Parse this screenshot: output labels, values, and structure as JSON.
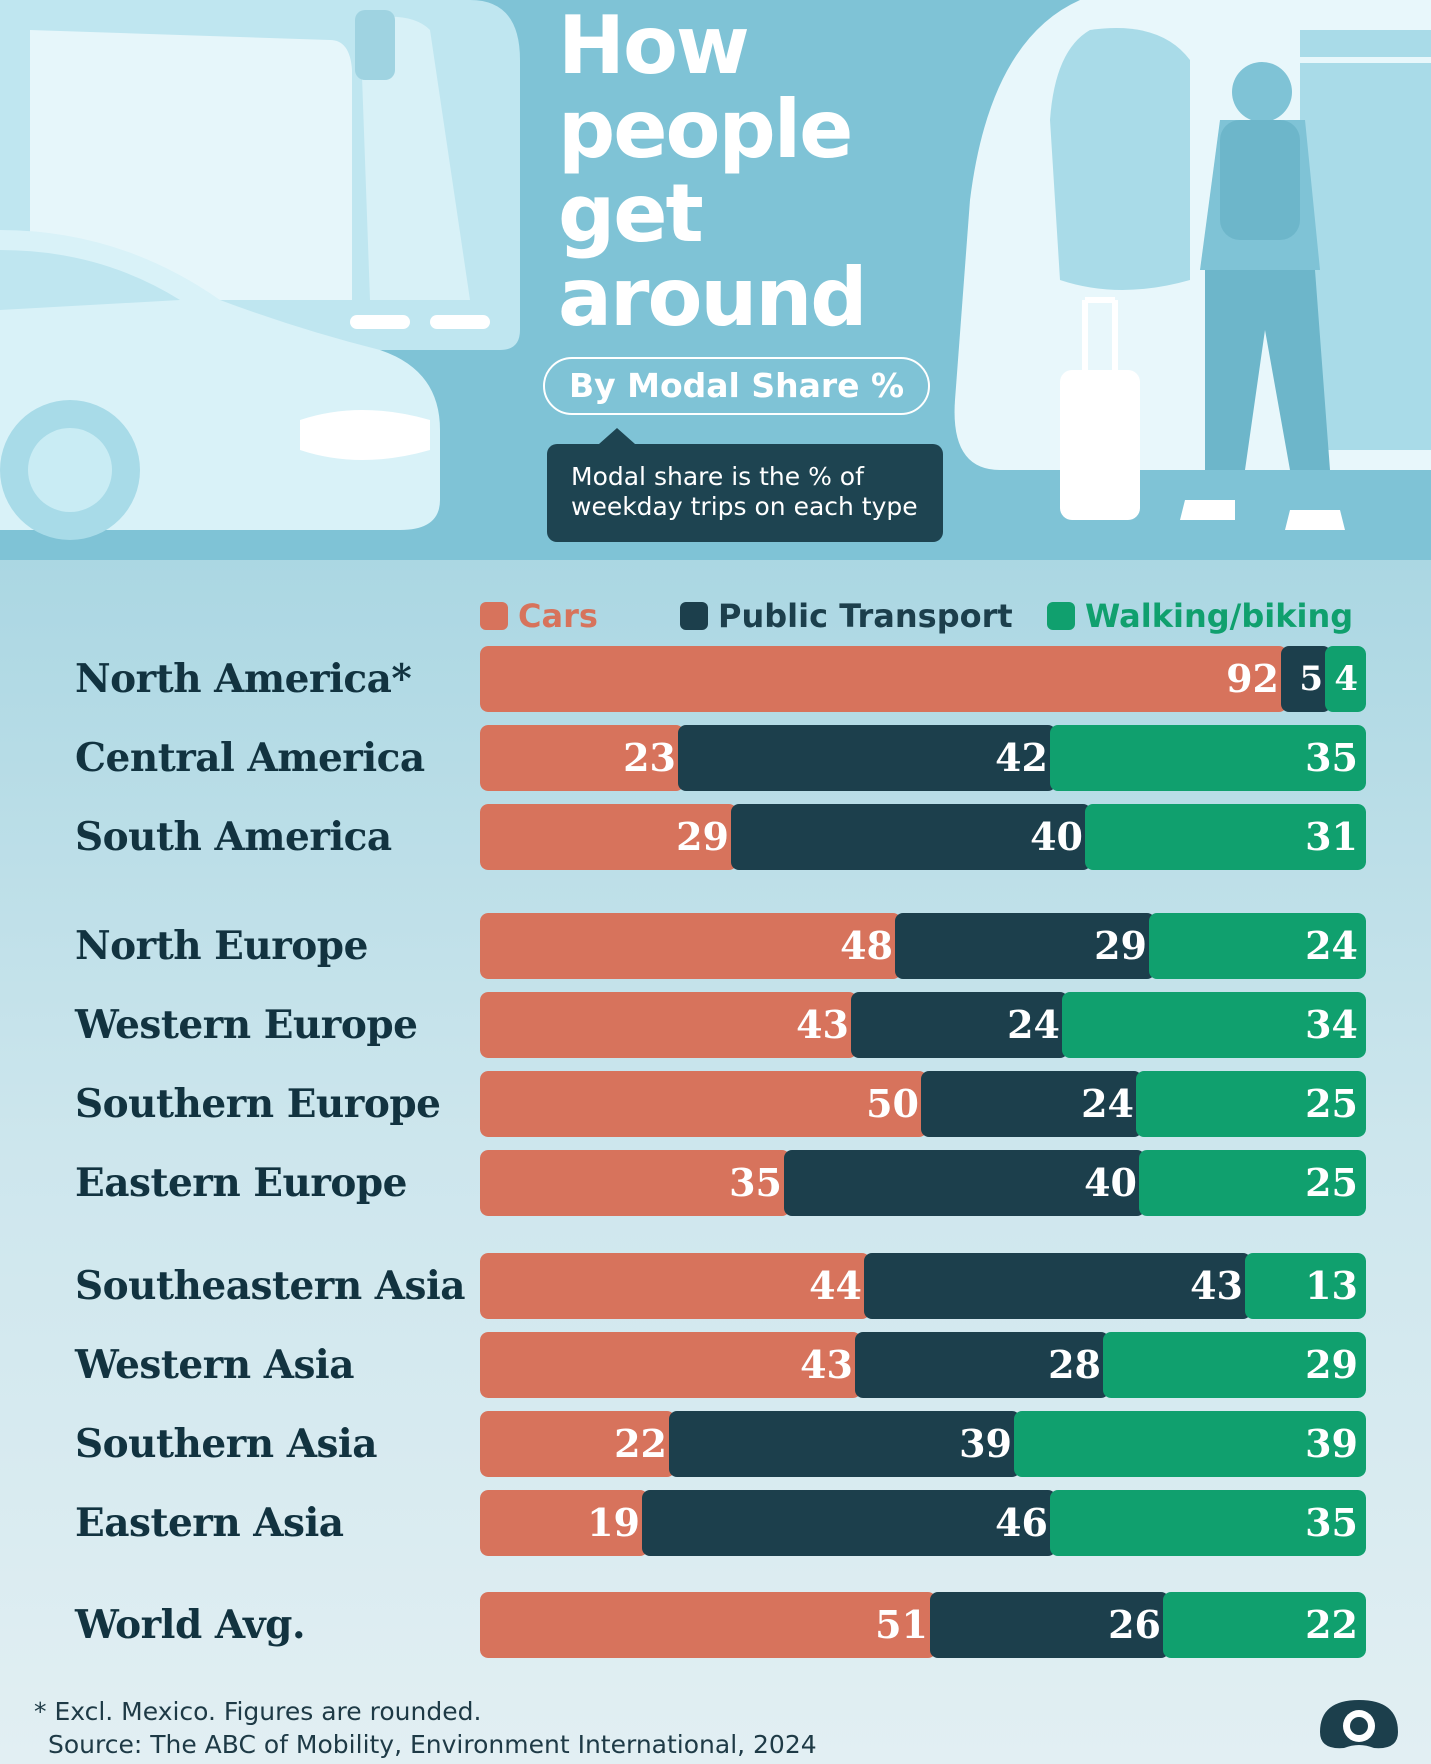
{
  "header": {
    "title_lines": [
      "How",
      "people",
      "get",
      "around"
    ],
    "subtitle": "By Modal Share %",
    "note_lines": [
      "Modal share is the % of",
      "weekday trips on each type"
    ]
  },
  "colors": {
    "cars": "#d7735c",
    "public_transport": "#1c3f4c",
    "walking_biking": "#10a06e"
  },
  "chart_data": {
    "type": "bar",
    "orientation": "horizontal",
    "stacked": true,
    "percent_stacked": true,
    "title": "How people get around",
    "subtitle": "By Modal Share %",
    "legend_placement": "top",
    "categories": [
      "North America*",
      "Central America",
      "South America",
      "North Europe",
      "Western Europe",
      "Southern Europe",
      "Eastern Europe",
      "Southeastern Asia",
      "Western Asia",
      "Southern Asia",
      "Eastern Asia",
      "World Avg."
    ],
    "groups": [
      [
        0,
        1,
        2
      ],
      [
        3,
        4,
        5,
        6
      ],
      [
        7,
        8,
        9,
        10
      ],
      [
        11
      ]
    ],
    "series": [
      {
        "name": "Cars",
        "values": [
          92,
          23,
          29,
          48,
          43,
          50,
          35,
          44,
          43,
          22,
          19,
          51
        ]
      },
      {
        "name": "Public Transport",
        "values": [
          5,
          42,
          40,
          29,
          24,
          24,
          40,
          43,
          28,
          39,
          46,
          26
        ]
      },
      {
        "name": "Walking/biking",
        "values": [
          4,
          35,
          31,
          24,
          34,
          25,
          25,
          13,
          29,
          39,
          35,
          22
        ]
      }
    ]
  },
  "footer": {
    "footnote": "* Excl. Mexico. Figures are rounded.",
    "source": "Source: The ABC of Mobility, Environment International, 2024"
  }
}
